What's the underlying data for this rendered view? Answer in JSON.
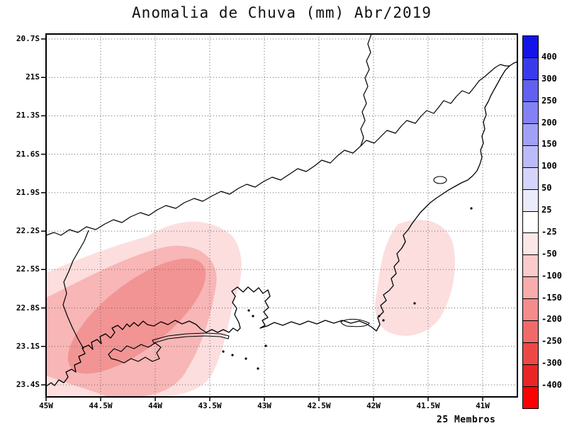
{
  "title": "Anomalia de Chuva (mm) Abr/2019",
  "footer_label": "25 Membros",
  "axes": {
    "lat_labels": [
      "20.7S",
      "21S",
      "21.3S",
      "21.6S",
      "21.9S",
      "22.2S",
      "22.5S",
      "22.8S",
      "23.1S",
      "23.4S"
    ],
    "lon_labels": [
      "45W",
      "44.5W",
      "44W",
      "43.5W",
      "43W",
      "42.5W",
      "42W",
      "41.5W",
      "41W"
    ]
  },
  "colorbar": {
    "labels": [
      "400",
      "300",
      "250",
      "200",
      "150",
      "100",
      "50",
      "25",
      "-25",
      "-50",
      "-100",
      "-150",
      "-200",
      "-250",
      "-300",
      "-400"
    ],
    "segment_colors_top_to_bottom": [
      "#1414e8",
      "#3a3aed",
      "#6060f1",
      "#8282f4",
      "#a0a0f7",
      "#bbbbfa",
      "#d4d4fc",
      "#ebebfe",
      "#ffffff",
      "#fde6e6",
      "#fbcaca",
      "#f8acac",
      "#f58c8c",
      "#f16a6a",
      "#ed4747",
      "#e92525",
      "#ff0000"
    ],
    "border_color": "#000000"
  },
  "map": {
    "background": "#ffffff",
    "outline_color": "#000000",
    "grid_color": "#666666",
    "fill_level_1": "#fcdede",
    "fill_level_2": "#f8b6b6",
    "fill_level_3": "#f29494"
  },
  "chart_data": {
    "type": "heatmap",
    "variant": "filled-contour-map",
    "title": "Anomalia de Chuva (mm) Abr/2019",
    "variable": "Anomalia de Chuva",
    "units": "mm",
    "period": "Abr/2019",
    "ensemble_members": 25,
    "x_axis": {
      "kind": "longitude",
      "ticks": [
        "45W",
        "44.5W",
        "44W",
        "43.5W",
        "43W",
        "42.5W",
        "42W",
        "41.5W",
        "41W"
      ],
      "range_deg_west": [
        45.0,
        40.7
      ]
    },
    "y_axis": {
      "kind": "latitude",
      "ticks": [
        "20.7S",
        "21S",
        "21.3S",
        "21.6S",
        "21.9S",
        "22.2S",
        "22.5S",
        "22.8S",
        "23.1S",
        "23.4S"
      ],
      "range_deg_south": [
        20.7,
        23.5
      ]
    },
    "colorbar_levels_mm": [
      400,
      300,
      250,
      200,
      150,
      100,
      50,
      25,
      -25,
      -50,
      -100,
      -150,
      -200,
      -250,
      -300,
      -400
    ],
    "grid": true,
    "legend_position": "right",
    "region_outline": "Rio de Janeiro state and adjacent coastline (Brazil)",
    "shaded_features": [
      {
        "region": "southwest Rio de Janeiro / Costa Verde and Serra area",
        "approx_lon_range_w": [
          45.0,
          43.35
        ],
        "approx_lat_range_s": [
          22.2,
          23.5
        ],
        "anomaly_band_mm": "-150 to -25",
        "peak_band_mm": "-150 to -100"
      },
      {
        "region": "east coast near Cabo Frio / Regiao dos Lagos",
        "approx_lon_range_w": [
          42.15,
          41.35
        ],
        "approx_lat_range_s": [
          22.2,
          23.1
        ],
        "anomaly_band_mm": "-50 to -25"
      }
    ]
  }
}
